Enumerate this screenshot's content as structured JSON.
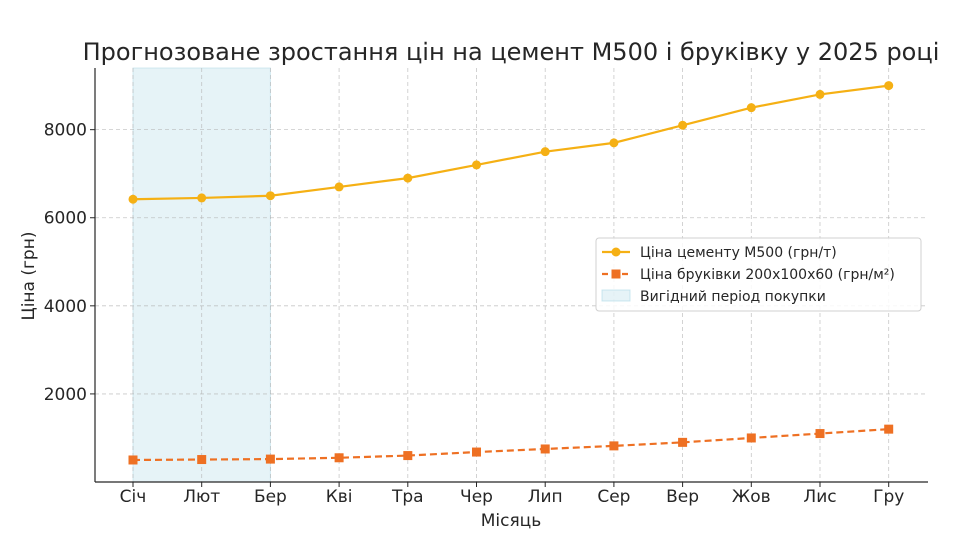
{
  "chart_data": {
    "type": "line",
    "title": "Прогнозоване зростання цін на цемент М500 і бруківку у 2025 році",
    "xlabel": "Місяць",
    "ylabel": "Ціна (грн)",
    "categories": [
      "Січ",
      "Лют",
      "Бер",
      "Кві",
      "Тра",
      "Чер",
      "Лип",
      "Сер",
      "Вер",
      "Жов",
      "Лис",
      "Гру"
    ],
    "ylim": [
      0,
      9400
    ],
    "yticks": [
      2000,
      4000,
      6000,
      8000
    ],
    "grid": true,
    "legend_position": "center-right",
    "series": [
      {
        "name": "Ціна цементу М500 (грн/т)",
        "values": [
          6420,
          6450,
          6500,
          6700,
          6900,
          7200,
          7500,
          7700,
          8100,
          8500,
          8800,
          9000
        ],
        "color": "#f5b014",
        "line_style": "solid",
        "marker": "circle"
      },
      {
        "name": "Ціна бруківки 200х100х60 (грн/м²)",
        "values": [
          500,
          510,
          520,
          550,
          600,
          680,
          750,
          820,
          900,
          1000,
          1100,
          1200
        ],
        "color": "#ee7023",
        "line_style": "dashed",
        "marker": "square"
      }
    ],
    "highlight": {
      "label": "Вигідний період покупки",
      "from": "Січ",
      "to": "Бер",
      "color": "#add8e6"
    }
  }
}
